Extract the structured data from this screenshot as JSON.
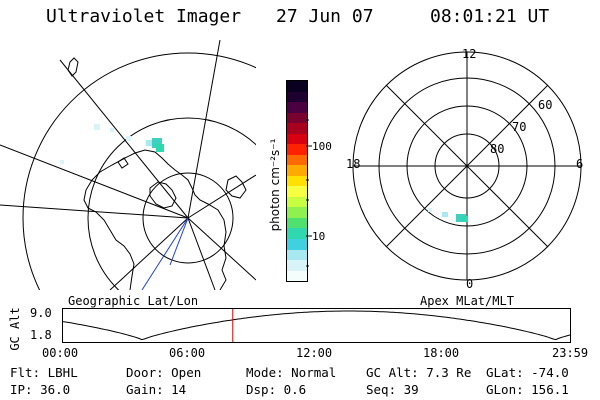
{
  "header": {
    "instrument": "Ultraviolet Imager",
    "date": "27 Jun 07",
    "time": "08:01:21 UT"
  },
  "colorbar": {
    "unit_label": "photon cm⁻²s⁻¹",
    "ticks": [
      "100",
      "10"
    ],
    "colors": [
      "#0a0020",
      "#1e0030",
      "#4a0040",
      "#7a0030",
      "#aa0020",
      "#d80010",
      "#ff2200",
      "#ff6a00",
      "#ffaa00",
      "#ffe000",
      "#f8ff40",
      "#c8ff40",
      "#90f050",
      "#50e070",
      "#30d8b0",
      "#40d0e0",
      "#a8e8f0",
      "#d8f4f8",
      "#f4fcfc"
    ]
  },
  "map_labels": {
    "geographic": "Geographic Lat/Lon",
    "apex": "Apex MLat/MLT"
  },
  "polar": {
    "mlt_labels": [
      "12",
      "18",
      "6",
      "0"
    ],
    "lat_labels": [
      "60",
      "70",
      "80"
    ]
  },
  "timeline": {
    "ylabel": "GC Alt",
    "y_ticks": [
      "9.0",
      "1.8"
    ],
    "x_ticks": [
      "00:00",
      "06:00",
      "12:00",
      "18:00",
      "23:59"
    ],
    "current_time_hours": 8.02
  },
  "meta": {
    "flt": "Flt: LBHL",
    "ip": "IP: 36.0",
    "door": "Door: Open",
    "gain": "Gain: 14",
    "mode": "Mode: Normal",
    "dsp": "Dsp:    0.6",
    "gcalt": "GC Alt: 7.3 Re",
    "seq": "Seq: 39",
    "glat": "GLat: -74.0",
    "glon": "GLon: 156.1"
  }
}
